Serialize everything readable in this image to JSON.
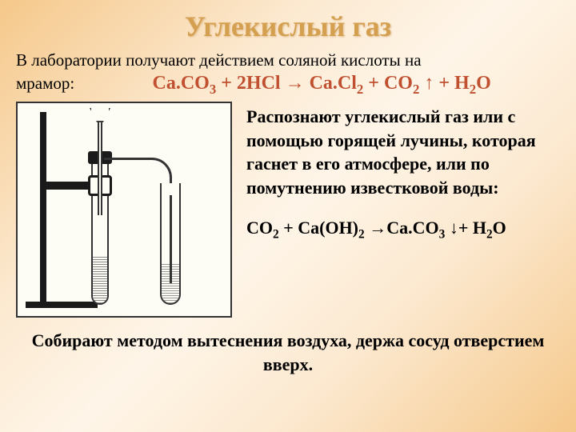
{
  "title": "Углекислый газ",
  "intro_line1": "В лаборатории получают действием соляной кислоты на",
  "intro_line2": "мрамор:",
  "equation1_parts": {
    "p1": "Ca.CO",
    "s1": "3",
    "p2": " + 2HCl → Ca.Cl",
    "s2": "2",
    "p3": " + CO",
    "s3": "2",
    "p4": " ↑ + H",
    "s4": "2",
    "p5": "O"
  },
  "detection_text": "Распознают углекислый газ или с помощью горящей лучины, которая гаснет в его атмосфере, или по помутнению известковой воды:",
  "equation2_parts": {
    "p1": "CO",
    "s1": "2",
    "p2": " + Ca(OH)",
    "s2": "2",
    "p3": " →Ca.CO",
    "s3": "3",
    "p4": " ↓+ H",
    "s4": "2",
    "p5": "O"
  },
  "conclusion": "Собирают методом вытеснения воздуха, держа сосуд отверстием вверх.",
  "colors": {
    "title_color": "#d4a050",
    "equation1_color": "#c05030",
    "text_color": "#000000",
    "bg_gradient_outer": "#f5c88a",
    "bg_gradient_inner": "#fef5e8"
  },
  "fonts": {
    "title_size": 36,
    "body_size": 21,
    "equation_size": 24,
    "family": "Times New Roman"
  }
}
